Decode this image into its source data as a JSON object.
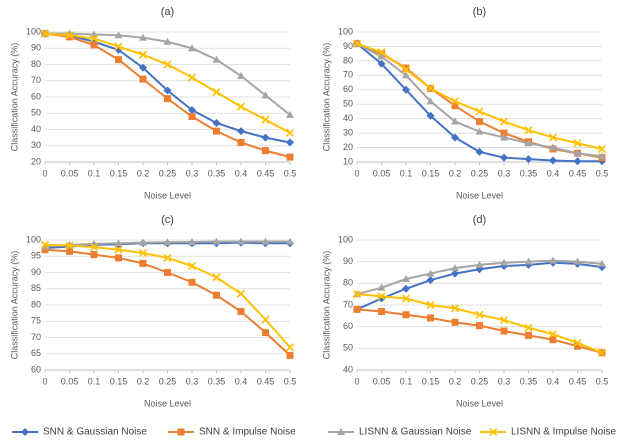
{
  "chart_data": [
    {
      "type": "line",
      "title": "(a)",
      "x_label": "Noise Level",
      "y_label": "Classification Accuracy (%)",
      "x": [
        0,
        0.05,
        0.1,
        0.15,
        0.2,
        0.25,
        0.3,
        0.35,
        0.4,
        0.45,
        0.5
      ],
      "xlim": [
        0,
        0.5
      ],
      "xticks": [
        0,
        0.05,
        0.1,
        0.15,
        0.2,
        0.25,
        0.3,
        0.35,
        0.4,
        0.45,
        0.5
      ],
      "ylim": [
        20,
        100
      ],
      "yticks": [
        20,
        30,
        40,
        50,
        60,
        70,
        80,
        90,
        100
      ],
      "grid": true,
      "legend": "bottom",
      "series": [
        {
          "name": "SNN & Gaussian Noise",
          "color": "#4472c4",
          "marker": "diamond",
          "values": [
            99,
            98,
            94,
            89,
            78,
            64,
            52,
            44,
            39,
            35,
            32
          ]
        },
        {
          "name": "SNN & Impulse Noise",
          "color": "#ed7d31",
          "marker": "square",
          "values": [
            99,
            97,
            92,
            83,
            71,
            59,
            48,
            39,
            32,
            27,
            23
          ]
        },
        {
          "name": "LISNN & Gaussian Noise",
          "color": "#a5a5a5",
          "marker": "triangle",
          "values": [
            99,
            99,
            98.5,
            98,
            96.5,
            94,
            90,
            83,
            73,
            61,
            49
          ]
        },
        {
          "name": "LISNN & Impulse Noise",
          "color": "#ffc000",
          "marker": "x",
          "values": [
            99,
            98,
            96,
            91,
            86,
            80,
            72,
            63,
            54,
            46,
            38
          ]
        }
      ]
    },
    {
      "type": "line",
      "title": "(b)",
      "x_label": "Noise Level",
      "y_label": "Classification Accuracy (%)",
      "x": [
        0,
        0.05,
        0.1,
        0.15,
        0.2,
        0.25,
        0.3,
        0.35,
        0.4,
        0.45,
        0.5
      ],
      "xlim": [
        0,
        0.5
      ],
      "xticks": [
        0,
        0.05,
        0.1,
        0.15,
        0.2,
        0.25,
        0.3,
        0.35,
        0.4,
        0.45,
        0.5
      ],
      "ylim": [
        10,
        100
      ],
      "yticks": [
        10,
        20,
        30,
        40,
        50,
        60,
        70,
        80,
        90,
        100
      ],
      "grid": true,
      "series": [
        {
          "name": "SNN & Gaussian Noise",
          "color": "#4472c4",
          "marker": "diamond",
          "values": [
            92,
            78,
            60,
            42,
            27,
            17,
            13,
            12,
            11,
            10.5,
            10.5
          ]
        },
        {
          "name": "SNN & Impulse Noise",
          "color": "#ed7d31",
          "marker": "square",
          "values": [
            92,
            85,
            75,
            61,
            49,
            38,
            30,
            24,
            19,
            16,
            13
          ]
        },
        {
          "name": "LISNN & Gaussian Noise",
          "color": "#a5a5a5",
          "marker": "triangle",
          "values": [
            92,
            83,
            70,
            52,
            38,
            31,
            27,
            23,
            20,
            16,
            14
          ]
        },
        {
          "name": "LISNN & Impulse Noise",
          "color": "#ffc000",
          "marker": "x",
          "values": [
            92,
            86,
            74,
            61,
            52,
            45,
            38,
            32,
            27,
            23,
            19
          ]
        }
      ]
    },
    {
      "type": "line",
      "title": "(c)",
      "x_label": "Noise Level",
      "y_label": "Classification Accuracy (%)",
      "x": [
        0,
        0.05,
        0.1,
        0.15,
        0.2,
        0.25,
        0.3,
        0.35,
        0.4,
        0.45,
        0.5
      ],
      "xlim": [
        0,
        0.5
      ],
      "xticks": [
        0,
        0.05,
        0.1,
        0.15,
        0.2,
        0.25,
        0.3,
        0.35,
        0.4,
        0.45,
        0.5
      ],
      "ylim": [
        60,
        100
      ],
      "yticks": [
        60,
        65,
        70,
        75,
        80,
        85,
        90,
        95,
        100
      ],
      "grid": true,
      "series": [
        {
          "name": "SNN & Gaussian Noise",
          "color": "#4472c4",
          "marker": "diamond",
          "values": [
            97.5,
            98,
            98.5,
            98.7,
            99,
            99,
            99,
            99,
            99.2,
            99,
            99
          ]
        },
        {
          "name": "SNN & Impulse Noise",
          "color": "#ed7d31",
          "marker": "square",
          "values": [
            97,
            96.5,
            95.5,
            94.5,
            92.8,
            90,
            87,
            83,
            78,
            71.5,
            64.5
          ]
        },
        {
          "name": "LISNN & Gaussian Noise",
          "color": "#a5a5a5",
          "marker": "triangle",
          "values": [
            98,
            98.5,
            98.8,
            99,
            99.2,
            99.3,
            99.4,
            99.5,
            99.5,
            99.5,
            99.5
          ]
        },
        {
          "name": "LISNN & Impulse Noise",
          "color": "#ffc000",
          "marker": "x",
          "values": [
            98.5,
            98.3,
            97.8,
            97,
            96,
            94.5,
            92,
            88.5,
            83.5,
            75.5,
            67
          ]
        }
      ]
    },
    {
      "type": "line",
      "title": "(d)",
      "x_label": "Noise Level",
      "y_label": "Classification Accuracy (%)",
      "x": [
        0,
        0.05,
        0.1,
        0.15,
        0.2,
        0.25,
        0.3,
        0.35,
        0.4,
        0.45,
        0.5
      ],
      "xlim": [
        0,
        0.5
      ],
      "xticks": [
        0,
        0.05,
        0.1,
        0.15,
        0.2,
        0.25,
        0.3,
        0.35,
        0.4,
        0.45,
        0.5
      ],
      "ylim": [
        40,
        100
      ],
      "yticks": [
        40,
        50,
        60,
        70,
        80,
        90,
        100
      ],
      "grid": true,
      "series": [
        {
          "name": "SNN & Gaussian Noise",
          "color": "#4472c4",
          "marker": "diamond",
          "values": [
            68,
            73,
            77.5,
            81.5,
            84.5,
            86.5,
            88,
            88.5,
            89.5,
            89,
            87.5
          ]
        },
        {
          "name": "SNN & Impulse Noise",
          "color": "#ed7d31",
          "marker": "square",
          "values": [
            68,
            67,
            65.5,
            64,
            62,
            60.5,
            58,
            56,
            54,
            51,
            48
          ]
        },
        {
          "name": "LISNN & Gaussian Noise",
          "color": "#a5a5a5",
          "marker": "triangle",
          "values": [
            75,
            78,
            82,
            84.5,
            87,
            88.5,
            89.5,
            90,
            90.5,
            90,
            89
          ]
        },
        {
          "name": "LISNN & Impulse Noise",
          "color": "#ffc000",
          "marker": "x",
          "values": [
            75,
            74,
            73,
            70,
            68.5,
            65.5,
            63,
            59.5,
            56.5,
            52.5,
            48
          ]
        }
      ]
    }
  ]
}
